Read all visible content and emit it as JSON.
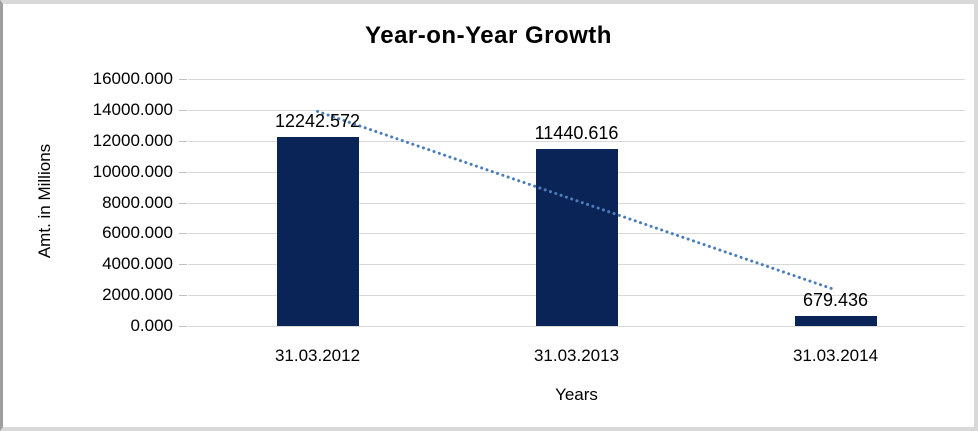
{
  "chart_data": {
    "type": "bar",
    "title": "Year-on-Year Growth",
    "xlabel": "Years",
    "ylabel": "Amt. in Millions",
    "categories": [
      "31.03.2012",
      "31.03.2013",
      "31.03.2014"
    ],
    "values": [
      12242.572,
      11440.616,
      679.436
    ],
    "data_labels": [
      "12242.572",
      "11440.616",
      "679.436"
    ],
    "y_ticks": [
      "16000.000",
      "14000.000",
      "12000.000",
      "10000.000",
      "8000.000",
      "6000.000",
      "4000.000",
      "2000.000",
      "0.000"
    ],
    "ylim": [
      0,
      16000
    ],
    "grid": true,
    "legend_position": "none",
    "trendline": {
      "type": "linear",
      "style": "dotted"
    },
    "colors": {
      "bar": "#0a2458",
      "trendline": "#4a7ebb",
      "gridline": "#d9d9d9",
      "text": "#000000"
    }
  }
}
